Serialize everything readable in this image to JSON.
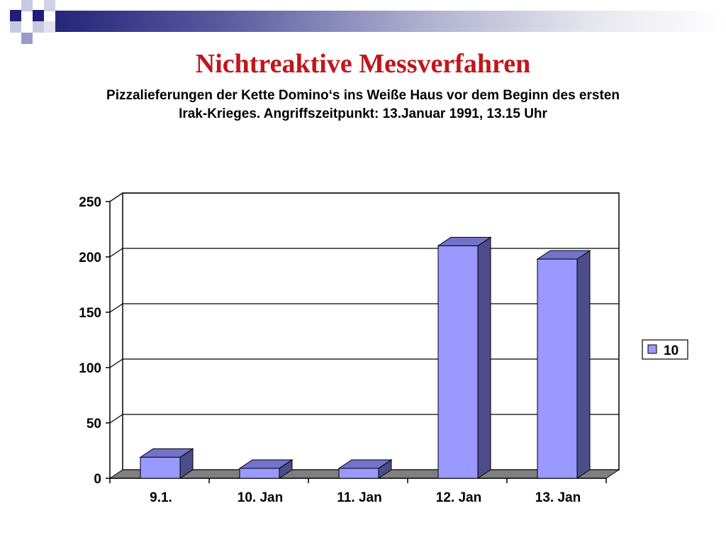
{
  "slide": {
    "title": "Nichtreaktive Messverfahren",
    "subtitle_line1": "Pizzalieferungen der Kette Domino‘s ins Weiße Haus vor dem Beginn des ersten",
    "subtitle_line2": "Irak-Krieges. Angriffszeitpunkt: 13.Januar 1991, 13.15 Uhr"
  },
  "colors": {
    "title": "#c0161c",
    "bar_front": "#9999ff",
    "bar_top": "#7373cc",
    "bar_side": "#4d4d8a",
    "floor": "#7f7f7f"
  },
  "chart_data": {
    "type": "bar",
    "title": "",
    "xlabel": "",
    "ylabel": "",
    "categories": [
      "9.1.",
      "10. Jan",
      "11. Jan",
      "12. Jan",
      "13. Jan"
    ],
    "series": [
      {
        "name": "10",
        "values": [
          19,
          9,
          9,
          210,
          198
        ]
      }
    ],
    "ylim": [
      0,
      250
    ],
    "yticks": [
      0,
      50,
      100,
      150,
      200,
      250
    ],
    "grid": true,
    "legend": "right",
    "style": "3d"
  }
}
